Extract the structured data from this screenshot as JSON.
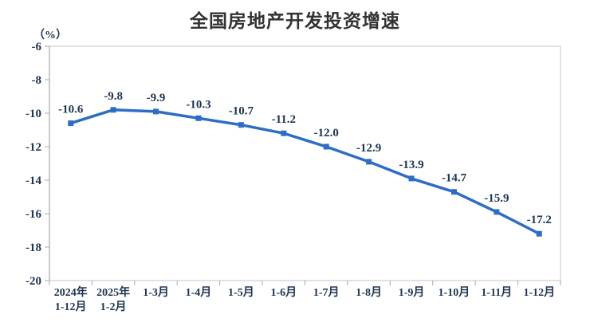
{
  "title": "全国房地产开发投资增速",
  "chart_data": {
    "type": "line",
    "title": "全国房地产开发投资增速",
    "ylabel": "（%）",
    "categories": [
      [
        "2024年",
        "1-12月"
      ],
      [
        "2025年",
        "1-2月"
      ],
      [
        "1-3月"
      ],
      [
        "1-4月"
      ],
      [
        "1-5月"
      ],
      [
        "1-6月"
      ],
      [
        "1-7月"
      ],
      [
        "1-8月"
      ],
      [
        "1-9月"
      ],
      [
        "1-10月"
      ],
      [
        "1-11月"
      ],
      [
        "1-12月"
      ]
    ],
    "values": [
      -10.6,
      -9.8,
      -9.9,
      -10.3,
      -10.7,
      -11.2,
      -12.0,
      -12.9,
      -13.9,
      -14.7,
      -15.9,
      -17.2
    ],
    "data_labels": [
      "-10.6",
      "-9.8",
      "-9.9",
      "-10.3",
      "-10.7",
      "-11.2",
      "-12.0",
      "-12.9",
      "-13.9",
      "-14.7",
      "-15.9",
      "-17.2"
    ],
    "ylim": [
      -20,
      -6
    ],
    "yticks": [
      -6,
      -8,
      -10,
      -12,
      -14,
      -16,
      -18,
      -20
    ],
    "grid": false,
    "legend": "none",
    "colors": {
      "line": "#2E6DC5",
      "marker": "#2E6DC5",
      "label_text": "#1F3450",
      "axis_text": "#1F3450",
      "border": "#D9D9D9",
      "axis_line": "#A9A9A9",
      "title_text": "#333333"
    }
  }
}
